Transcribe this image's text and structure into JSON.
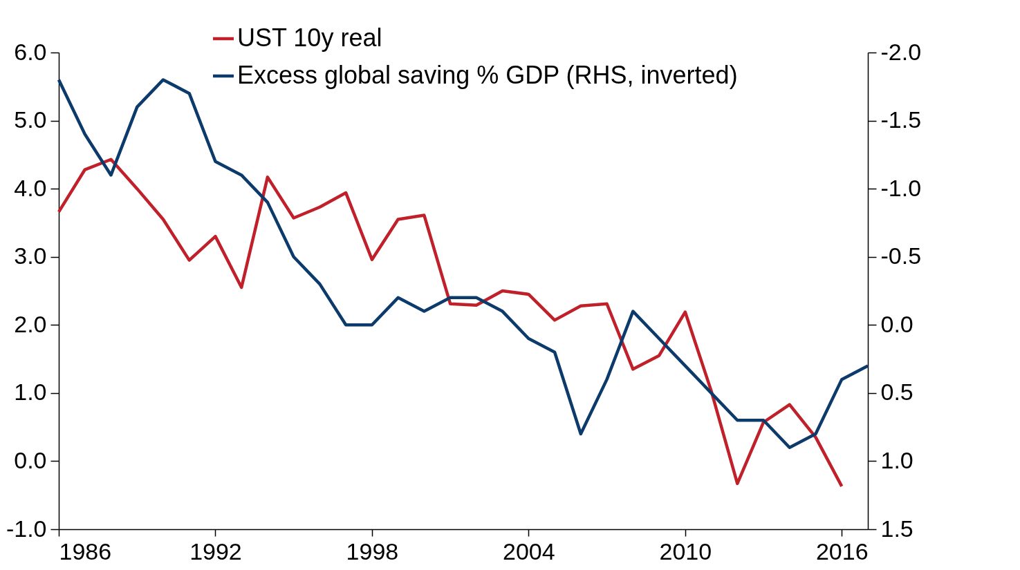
{
  "chart_data": {
    "type": "line",
    "x": [
      1986,
      1987,
      1988,
      1989,
      1990,
      1991,
      1992,
      1993,
      1994,
      1995,
      1996,
      1997,
      1998,
      1999,
      2000,
      2001,
      2002,
      2003,
      2004,
      2005,
      2006,
      2007,
      2008,
      2009,
      2010,
      2011,
      2012,
      2013,
      2014,
      2015,
      2016
    ],
    "series": [
      {
        "name": "UST 10y real",
        "color": "#c0202a",
        "values": [
          3.66,
          4.28,
          4.43,
          4.0,
          3.55,
          2.95,
          3.3,
          2.55,
          4.17,
          3.57,
          3.73,
          3.94,
          2.96,
          3.55,
          3.61,
          2.31,
          2.29,
          2.5,
          2.45,
          2.07,
          2.28,
          2.31,
          1.35,
          1.55,
          2.19,
          1.03,
          -0.33,
          0.57,
          0.83,
          0.35,
          -0.37
        ]
      },
      {
        "name": "Excess global saving % GDP (RHS, inverted)",
        "color": "#0b3a6b",
        "axis": "y2",
        "x": [
          1986,
          1987,
          1988,
          1989,
          1990,
          1991,
          1992,
          1993,
          1994,
          1995,
          1996,
          1997,
          1998,
          1999,
          2000,
          2001,
          2002,
          2003,
          2004,
          2005,
          2006,
          2007,
          2008,
          2009,
          2010,
          2011,
          2012,
          2013,
          2014,
          2015,
          2016,
          2017
        ],
        "values": [
          -1.8,
          -1.4,
          -1.1,
          -1.6,
          -1.8,
          -1.7,
          -1.2,
          -1.1,
          -0.9,
          -0.5,
          -0.3,
          0.0,
          0.0,
          -0.2,
          -0.1,
          -0.2,
          -0.2,
          -0.1,
          0.1,
          0.2,
          0.8,
          0.4,
          -0.1,
          0.1,
          0.3,
          0.5,
          0.7,
          0.7,
          0.9,
          0.8,
          0.4,
          0.3
        ]
      }
    ],
    "xlim": [
      1986,
      2017
    ],
    "xticks": [
      1986,
      1992,
      1998,
      2004,
      2010,
      2016
    ],
    "ylim": [
      -1,
      6
    ],
    "yticks": [
      {
        "value": -1,
        "label": "-1.0"
      },
      {
        "value": 0,
        "label": "0.0"
      },
      {
        "value": 1,
        "label": "1.0"
      },
      {
        "value": 2,
        "label": "2.0"
      },
      {
        "value": 3,
        "label": "3.0"
      },
      {
        "value": 4,
        "label": "4.0"
      },
      {
        "value": 5,
        "label": "5.0"
      },
      {
        "value": 6,
        "label": "6.0"
      }
    ],
    "y2lim": [
      1.5,
      -2
    ],
    "y2ticks": [
      {
        "value": 1.5,
        "label": "1.5"
      },
      {
        "value": 1,
        "label": "1.0"
      },
      {
        "value": 0.5,
        "label": "0.5"
      },
      {
        "value": 0,
        "label": "0.0"
      },
      {
        "value": -0.5,
        "label": "-0.5"
      },
      {
        "value": -1,
        "label": "-1.0"
      },
      {
        "value": -1.5,
        "label": "-1.5"
      },
      {
        "value": -2,
        "label": "-2.0"
      }
    ],
    "grid": false,
    "legend": "top",
    "line_style": "solid"
  }
}
